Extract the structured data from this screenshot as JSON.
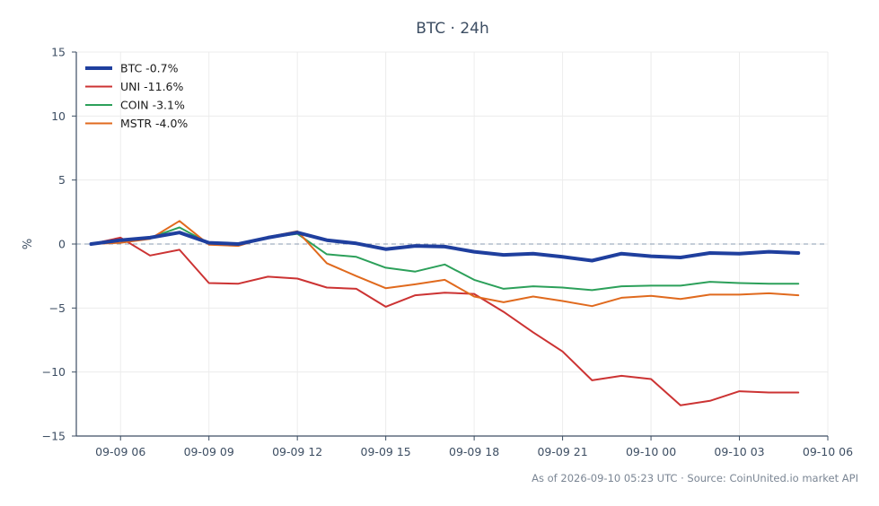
{
  "chart_data": {
    "type": "line",
    "title": "BTC · 24h",
    "ylabel": "%",
    "xlabel": "",
    "ylim": [
      -15,
      15
    ],
    "yticks": [
      -15,
      -10,
      -5,
      0,
      5,
      10,
      15
    ],
    "x_start": "09-09 04:30",
    "x_end": "09-10 06:00",
    "xticks": [
      {
        "label": "09-09 06",
        "value": "09-09 06:00"
      },
      {
        "label": "09-09 09",
        "value": "09-09 09:00"
      },
      {
        "label": "09-09 12",
        "value": "09-09 12:00"
      },
      {
        "label": "09-09 15",
        "value": "09-09 15:00"
      },
      {
        "label": "09-09 18",
        "value": "09-09 18:00"
      },
      {
        "label": "09-09 21",
        "value": "09-09 21:00"
      },
      {
        "label": "09-10 00",
        "value": "09-10 00:00"
      },
      {
        "label": "09-10 03",
        "value": "09-10 03:00"
      },
      {
        "label": "09-10 06",
        "value": "09-10 06:00"
      }
    ],
    "grid": true,
    "zero_line": true,
    "legend_position": "top-left",
    "x": [
      "09-09 05:00",
      "09-09 06:00",
      "09-09 07:00",
      "09-09 08:00",
      "09-09 09:00",
      "09-09 10:00",
      "09-09 11:00",
      "09-09 12:00",
      "09-09 13:00",
      "09-09 14:00",
      "09-09 15:00",
      "09-09 16:00",
      "09-09 17:00",
      "09-09 18:00",
      "09-09 19:00",
      "09-09 20:00",
      "09-09 21:00",
      "09-09 22:00",
      "09-09 23:00",
      "09-10 00:00",
      "09-10 01:00",
      "09-10 02:00",
      "09-10 03:00",
      "09-10 04:00",
      "09-10 05:00"
    ],
    "series": [
      {
        "name": "BTC -0.7%",
        "color": "#1f3f9e",
        "width": "thick",
        "values": [
          0.0,
          0.3,
          0.5,
          0.9,
          0.1,
          0.0,
          0.5,
          0.9,
          0.3,
          0.05,
          -0.4,
          -0.15,
          -0.2,
          -0.6,
          -0.85,
          -0.75,
          -1.0,
          -1.3,
          -0.75,
          -0.95,
          -1.05,
          -0.7,
          -0.75,
          -0.6,
          -0.7
        ]
      },
      {
        "name": "UNI -11.6%",
        "color": "#cc3333",
        "width": "normal",
        "values": [
          0.0,
          0.5,
          -0.9,
          -0.45,
          -3.05,
          -3.1,
          -2.55,
          -2.7,
          -3.4,
          -3.5,
          -4.9,
          -4.0,
          -3.8,
          -3.9,
          -5.3,
          -6.9,
          -8.4,
          -10.65,
          -10.3,
          -10.55,
          -12.6,
          -12.25,
          -11.5,
          -11.6,
          -11.6
        ]
      },
      {
        "name": "COIN -3.1%",
        "color": "#2ca05a",
        "width": "normal",
        "values": [
          0.0,
          0.35,
          0.5,
          1.3,
          0.05,
          -0.1,
          0.5,
          0.8,
          -0.8,
          -1.0,
          -1.85,
          -2.15,
          -1.6,
          -2.8,
          -3.5,
          -3.3,
          -3.4,
          -3.6,
          -3.3,
          -3.25,
          -3.25,
          -2.95,
          -3.05,
          -3.1,
          -3.1
        ]
      },
      {
        "name": "MSTR -4.0%",
        "color": "#e06a1e",
        "width": "normal",
        "values": [
          0.0,
          0.1,
          0.4,
          1.8,
          -0.05,
          -0.15,
          0.55,
          1.0,
          -1.5,
          -2.5,
          -3.45,
          -3.15,
          -2.8,
          -4.1,
          -4.55,
          -4.1,
          -4.45,
          -4.85,
          -4.2,
          -4.05,
          -4.3,
          -3.95,
          -3.95,
          -3.85,
          -4.0
        ]
      }
    ]
  },
  "caption": "As of 2026-09-10 05:23 UTC · Source: CoinUnited.io market API"
}
